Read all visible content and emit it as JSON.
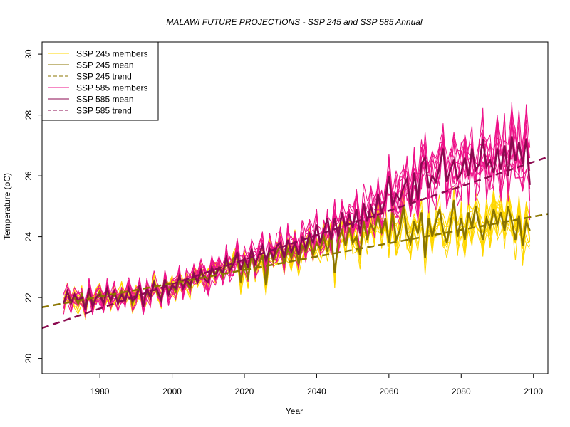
{
  "chart_data": {
    "type": "line",
    "title": "MALAWI FUTURE PROJECTIONS - SSP 245 and SSP 585 Annual",
    "xlabel": "Year",
    "ylabel": "Temperature (oC)",
    "xlim": [
      1964,
      2104
    ],
    "ylim": [
      19.5,
      30.4
    ],
    "x_ticks": [
      1980,
      2000,
      2020,
      2040,
      2060,
      2080,
      2100
    ],
    "y_ticks": [
      20,
      22,
      24,
      26,
      28,
      30
    ],
    "legend_position": "top-left",
    "colors": {
      "ssp245": "#FFD700",
      "ssp245_dark": "#8B7500",
      "ssp585": "#EE1289",
      "ssp585_dark": "#8B0A50"
    },
    "legend": [
      {
        "label": "SSP 245 members",
        "color": "#FFD700",
        "style": "solid",
        "width": 1
      },
      {
        "label": "SSP 245 mean",
        "color": "#8B7500",
        "style": "solid",
        "width": 1
      },
      {
        "label": "SSP 245 trend",
        "color": "#8B7500",
        "style": "dashed",
        "width": 1
      },
      {
        "label": "SSP 585 members",
        "color": "#EE1289",
        "style": "solid",
        "width": 1
      },
      {
        "label": "SSP 585 mean",
        "color": "#8B0A50",
        "style": "solid",
        "width": 1
      },
      {
        "label": "SSP 585 trend",
        "color": "#8B0A50",
        "style": "dashed",
        "width": 1
      }
    ],
    "years": [
      1970,
      1971,
      1972,
      1973,
      1974,
      1975,
      1976,
      1977,
      1978,
      1979,
      1980,
      1981,
      1982,
      1983,
      1984,
      1985,
      1986,
      1987,
      1988,
      1989,
      1990,
      1991,
      1992,
      1993,
      1994,
      1995,
      1996,
      1997,
      1998,
      1999,
      2000,
      2001,
      2002,
      2003,
      2004,
      2005,
      2006,
      2007,
      2008,
      2009,
      2010,
      2011,
      2012,
      2013,
      2014,
      2015,
      2016,
      2017,
      2018,
      2019,
      2020,
      2021,
      2022,
      2023,
      2024,
      2025,
      2026,
      2027,
      2028,
      2029,
      2030,
      2031,
      2032,
      2033,
      2034,
      2035,
      2036,
      2037,
      2038,
      2039,
      2040,
      2041,
      2042,
      2043,
      2044,
      2045,
      2046,
      2047,
      2048,
      2049,
      2050,
      2051,
      2052,
      2053,
      2054,
      2055,
      2056,
      2057,
      2058,
      2059,
      2060,
      2061,
      2062,
      2063,
      2064,
      2065,
      2066,
      2067,
      2068,
      2069,
      2070,
      2071,
      2072,
      2073,
      2074,
      2075,
      2076,
      2077,
      2078,
      2079,
      2080,
      2081,
      2082,
      2083,
      2084,
      2085,
      2086,
      2087,
      2088,
      2089,
      2090,
      2091,
      2092,
      2093,
      2094,
      2095,
      2096,
      2097,
      2098,
      2099
    ],
    "series": [
      {
        "name": "SSP 585 mean",
        "values": [
          21.8,
          22.2,
          21.8,
          22.1,
          21.9,
          22.0,
          21.6,
          22.3,
          21.7,
          22.0,
          22.1,
          21.8,
          22.3,
          21.9,
          22.2,
          21.8,
          22.1,
          21.9,
          22.3,
          21.9,
          22.0,
          22.4,
          21.7,
          22.3,
          22.0,
          22.5,
          22.2,
          21.9,
          22.6,
          22.1,
          22.4,
          22.3,
          22.7,
          22.3,
          22.6,
          22.4,
          22.8,
          22.5,
          22.9,
          22.6,
          22.5,
          23.0,
          22.7,
          23.0,
          22.8,
          23.3,
          22.9,
          23.1,
          23.5,
          22.9,
          23.3,
          23.0,
          23.6,
          23.1,
          23.4,
          23.7,
          23.2,
          23.6,
          23.3,
          23.7,
          23.8,
          23.3,
          23.9,
          23.5,
          23.8,
          23.4,
          24.0,
          23.6,
          24.1,
          23.8,
          24.4,
          23.8,
          24.2,
          24.6,
          23.9,
          24.6,
          24.0,
          24.8,
          24.3,
          24.7,
          24.3,
          24.9,
          24.1,
          25.1,
          24.5,
          25.0,
          24.6,
          25.4,
          24.8,
          25.2,
          26.0,
          25.0,
          25.4,
          25.2,
          25.6,
          25.9,
          25.0,
          26.1,
          25.2,
          26.4,
          26.6,
          25.6,
          26.0,
          25.8,
          26.3,
          26.9,
          25.8,
          26.2,
          26.5,
          25.9,
          26.1,
          26.6,
          26.0,
          26.9,
          26.2,
          26.4,
          27.2,
          26.3,
          26.5,
          26.1,
          26.9,
          26.2,
          27.0,
          26.0,
          27.3,
          26.5,
          27.1,
          26.4,
          27.2,
          25.7
        ]
      },
      {
        "name": "SSP 245 mean",
        "values": [
          21.8,
          22.2,
          21.9,
          22.0,
          21.8,
          22.1,
          21.6,
          22.2,
          21.8,
          22.0,
          22.2,
          21.8,
          22.2,
          21.9,
          22.1,
          21.9,
          22.2,
          21.9,
          22.3,
          21.8,
          22.1,
          22.3,
          21.8,
          22.2,
          22.0,
          22.5,
          22.1,
          22.0,
          22.6,
          22.2,
          22.4,
          22.2,
          22.6,
          22.4,
          22.5,
          22.3,
          22.7,
          22.5,
          22.8,
          22.7,
          22.6,
          22.9,
          22.8,
          23.0,
          22.7,
          23.2,
          22.9,
          23.3,
          23.4,
          22.5,
          23.2,
          22.6,
          23.5,
          22.9,
          23.1,
          23.4,
          22.4,
          23.6,
          23.2,
          23.5,
          23.7,
          23.1,
          23.6,
          23.3,
          23.8,
          23.1,
          23.7,
          23.5,
          23.9,
          23.4,
          23.8,
          23.6,
          24.0,
          23.5,
          24.1,
          22.8,
          23.9,
          24.2,
          23.7,
          24.3,
          23.8,
          24.0,
          23.4,
          24.5,
          23.9,
          24.4,
          24.2,
          24.7,
          24.1,
          24.6,
          23.8,
          24.8,
          23.9,
          24.2,
          25.0,
          24.1,
          23.8,
          24.5,
          24.1,
          24.8,
          23.3,
          24.6,
          24.0,
          24.5,
          24.9,
          24.2,
          23.8,
          24.4,
          25.2,
          24.0,
          24.6,
          23.9,
          24.8,
          24.3,
          25.0,
          24.4,
          23.9,
          24.6,
          24.3,
          24.9,
          24.4,
          24.8,
          24.2,
          25.0,
          24.5,
          23.9,
          24.7,
          23.7,
          24.5,
          24.2
        ]
      },
      {
        "name": "SSP 245 trend",
        "x": [
          1964,
          2104
        ],
        "values": [
          21.68,
          24.75
        ]
      },
      {
        "name": "SSP 585 trend",
        "x": [
          1964,
          2104
        ],
        "values": [
          21.0,
          26.62
        ]
      }
    ],
    "member_spread": {
      "ssp245_count": 10,
      "ssp585_count": 10,
      "amplitude_early": 0.35,
      "amplitude_late_245": 0.75,
      "amplitude_late_585": 1.25
    }
  }
}
